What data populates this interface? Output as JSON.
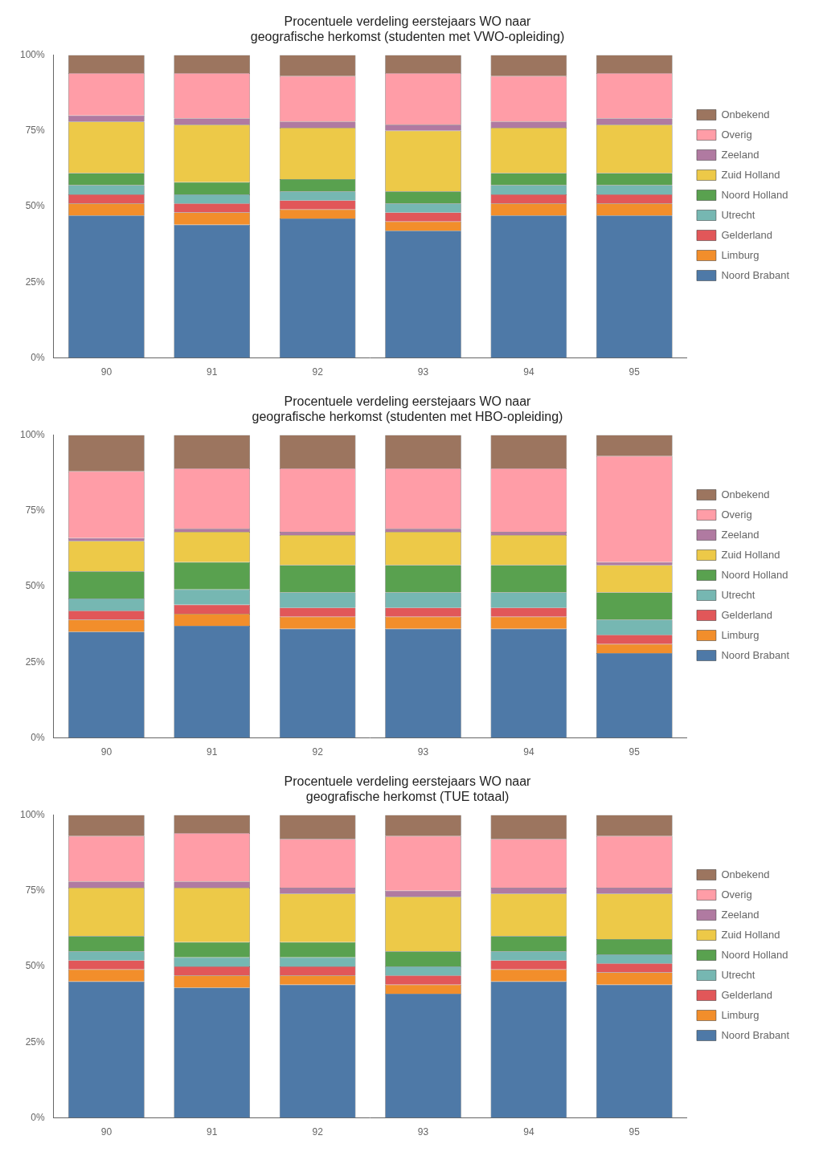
{
  "chart_data": [
    {
      "type": "bar",
      "stacked": true,
      "grid": false,
      "legend": "right",
      "title": [
        "Procentuele verdeling eerstejaars WO naar",
        "geografische herkomst (studenten met VWO-opleiding)"
      ],
      "categories": [
        "90",
        "91",
        "92",
        "93",
        "94",
        "95"
      ],
      "ylim": [
        0,
        100
      ],
      "yticks": [
        {
          "value": 0,
          "label": "0%"
        },
        {
          "value": 25,
          "label": "25%"
        },
        {
          "value": 50,
          "label": "50%"
        },
        {
          "value": 75,
          "label": "75%"
        },
        {
          "value": 100,
          "label": "100%"
        }
      ],
      "series": [
        {
          "name": "Noord Brabant",
          "color": "#4e79a7",
          "values": [
            47,
            44,
            46,
            42,
            47,
            47
          ]
        },
        {
          "name": "Limburg",
          "color": "#f28e2b",
          "values": [
            4,
            4,
            3,
            3,
            4,
            4
          ]
        },
        {
          "name": "Gelderland",
          "color": "#e15759",
          "values": [
            3,
            3,
            3,
            3,
            3,
            3
          ]
        },
        {
          "name": "Utrecht",
          "color": "#76b7b2",
          "values": [
            3,
            3,
            3,
            3,
            3,
            3
          ]
        },
        {
          "name": "Noord Holland",
          "color": "#59a14f",
          "values": [
            4,
            4,
            4,
            4,
            4,
            4
          ]
        },
        {
          "name": "Zuid Holland",
          "color": "#edc948",
          "values": [
            17,
            19,
            17,
            20,
            15,
            16
          ]
        },
        {
          "name": "Zeeland",
          "color": "#b07aa1",
          "values": [
            2,
            2,
            2,
            2,
            2,
            2
          ]
        },
        {
          "name": "Overig",
          "color": "#ff9da7",
          "values": [
            14,
            15,
            15,
            17,
            15,
            15
          ]
        },
        {
          "name": "Onbekend",
          "color": "#9c755f",
          "values": [
            6,
            6,
            7,
            6,
            7,
            6
          ]
        }
      ]
    },
    {
      "type": "bar",
      "stacked": true,
      "grid": false,
      "legend": "right",
      "title": [
        "Procentuele verdeling eerstejaars WO naar",
        "geografische herkomst (studenten met HBO-opleiding)"
      ],
      "categories": [
        "90",
        "91",
        "92",
        "93",
        "94",
        "95"
      ],
      "ylim": [
        0,
        100
      ],
      "yticks": [
        {
          "value": 0,
          "label": "0%"
        },
        {
          "value": 25,
          "label": "25%"
        },
        {
          "value": 50,
          "label": "50%"
        },
        {
          "value": 75,
          "label": "75%"
        },
        {
          "value": 100,
          "label": "100%"
        }
      ],
      "series": [
        {
          "name": "Noord Brabant",
          "color": "#4e79a7",
          "values": [
            35,
            37,
            36,
            36,
            36,
            28
          ]
        },
        {
          "name": "Limburg",
          "color": "#f28e2b",
          "values": [
            4,
            4,
            4,
            4,
            4,
            3
          ]
        },
        {
          "name": "Gelderland",
          "color": "#e15759",
          "values": [
            3,
            3,
            3,
            3,
            3,
            3
          ]
        },
        {
          "name": "Utrecht",
          "color": "#76b7b2",
          "values": [
            4,
            5,
            5,
            5,
            5,
            5
          ]
        },
        {
          "name": "Noord Holland",
          "color": "#59a14f",
          "values": [
            9,
            9,
            9,
            9,
            9,
            9
          ]
        },
        {
          "name": "Zuid Holland",
          "color": "#edc948",
          "values": [
            10,
            10,
            10,
            11,
            10,
            9
          ]
        },
        {
          "name": "Zeeland",
          "color": "#b07aa1",
          "values": [
            1,
            1,
            1,
            1,
            1,
            1
          ]
        },
        {
          "name": "Overig",
          "color": "#ff9da7",
          "values": [
            22,
            20,
            21,
            20,
            21,
            35
          ]
        },
        {
          "name": "Onbekend",
          "color": "#9c755f",
          "values": [
            12,
            11,
            11,
            11,
            11,
            7
          ]
        }
      ]
    },
    {
      "type": "bar",
      "stacked": true,
      "grid": false,
      "legend": "right",
      "title": [
        "Procentuele verdeling eerstejaars WO naar",
        "geografische herkomst (TUE totaal)"
      ],
      "categories": [
        "90",
        "91",
        "92",
        "93",
        "94",
        "95"
      ],
      "ylim": [
        0,
        100
      ],
      "yticks": [
        {
          "value": 0,
          "label": "0%"
        },
        {
          "value": 25,
          "label": "25%"
        },
        {
          "value": 50,
          "label": "50%"
        },
        {
          "value": 75,
          "label": "75%"
        },
        {
          "value": 100,
          "label": "100%"
        }
      ],
      "series": [
        {
          "name": "Noord Brabant",
          "color": "#4e79a7",
          "values": [
            45,
            43,
            44,
            41,
            45,
            44
          ]
        },
        {
          "name": "Limburg",
          "color": "#f28e2b",
          "values": [
            4,
            4,
            3,
            3,
            4,
            4
          ]
        },
        {
          "name": "Gelderland",
          "color": "#e15759",
          "values": [
            3,
            3,
            3,
            3,
            3,
            3
          ]
        },
        {
          "name": "Utrecht",
          "color": "#76b7b2",
          "values": [
            3,
            3,
            3,
            3,
            3,
            3
          ]
        },
        {
          "name": "Noord Holland",
          "color": "#59a14f",
          "values": [
            5,
            5,
            5,
            5,
            5,
            5
          ]
        },
        {
          "name": "Zuid Holland",
          "color": "#edc948",
          "values": [
            16,
            18,
            16,
            18,
            14,
            15
          ]
        },
        {
          "name": "Zeeland",
          "color": "#b07aa1",
          "values": [
            2,
            2,
            2,
            2,
            2,
            2
          ]
        },
        {
          "name": "Overig",
          "color": "#ff9da7",
          "values": [
            15,
            16,
            16,
            18,
            16,
            17
          ]
        },
        {
          "name": "Onbekend",
          "color": "#9c755f",
          "values": [
            7,
            6,
            8,
            7,
            8,
            7
          ]
        }
      ]
    }
  ]
}
